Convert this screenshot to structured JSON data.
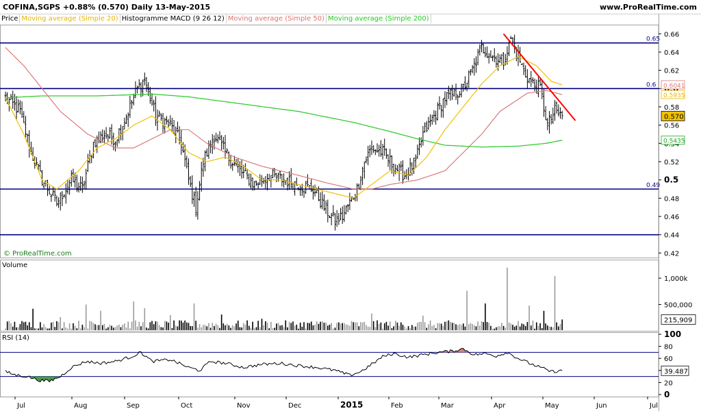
{
  "header": {
    "title": "COFINA,SGPS  +0.88% (0.570)  Daily  13-May-2015",
    "site": "www.ProRealTime.com"
  },
  "legend": [
    {
      "label": "Price",
      "color": "#000000"
    },
    {
      "label": "Moving average (Simple 20)",
      "color": "#e8b500"
    },
    {
      "label": "Histogramme MACD (9 26 12)",
      "color": "#000000"
    },
    {
      "label": "Moving average (Simple 50)",
      "color": "#e07070"
    },
    {
      "label": "Moving average (Simple 200)",
      "color": "#22cc22"
    }
  ],
  "watermark": "© ProRealTime.com",
  "colors": {
    "ma20": "#f0c000",
    "ma50": "#d97a7a",
    "ma200": "#33cc33",
    "trendline": "#ff0000",
    "hline": "#000080",
    "rsi_over": "#d47f7f",
    "rsi_under": "#4a9a4a"
  },
  "chart_data": [
    {
      "type": "line",
      "panel": "price",
      "x_ticks": [
        "Jul",
        "Aug",
        "Sep",
        "Oct",
        "Nov",
        "Dec",
        "2015",
        "Feb",
        "Mar",
        "Apr",
        "May",
        "Jun",
        "Jul"
      ],
      "y_ticks": [
        "0.66",
        "0.64",
        "0.62",
        "0.6",
        "0.58",
        "0.56",
        "0.54",
        "0.52",
        "0.5",
        "0.48",
        "0.46",
        "0.44",
        "0.42"
      ],
      "ylim": [
        0.415,
        0.67
      ],
      "horizontal_levels": [
        {
          "value": 0.65,
          "label": "0.65"
        },
        {
          "value": 0.6,
          "label": "0.6"
        },
        {
          "value": 0.49,
          "label": "0.49"
        },
        {
          "value": 0.44,
          "label": ""
        }
      ],
      "trendline": {
        "from": {
          "date": "Apr 8 2015",
          "value": 0.66
        },
        "to": {
          "date": "May 20 2015",
          "value": 0.565
        }
      },
      "price_anchors": [
        {
          "x": 0,
          "y": 0.59
        },
        {
          "x": 8,
          "y": 0.575
        },
        {
          "x": 14,
          "y": 0.53
        },
        {
          "x": 20,
          "y": 0.5
        },
        {
          "x": 28,
          "y": 0.475
        },
        {
          "x": 36,
          "y": 0.5
        },
        {
          "x": 42,
          "y": 0.49
        },
        {
          "x": 48,
          "y": 0.54
        },
        {
          "x": 54,
          "y": 0.55
        },
        {
          "x": 60,
          "y": 0.545
        },
        {
          "x": 66,
          "y": 0.57
        },
        {
          "x": 72,
          "y": 0.6
        },
        {
          "x": 76,
          "y": 0.61
        },
        {
          "x": 82,
          "y": 0.57
        },
        {
          "x": 90,
          "y": 0.56
        },
        {
          "x": 96,
          "y": 0.54
        },
        {
          "x": 100,
          "y": 0.5
        },
        {
          "x": 104,
          "y": 0.47
        },
        {
          "x": 108,
          "y": 0.52
        },
        {
          "x": 114,
          "y": 0.55
        },
        {
          "x": 120,
          "y": 0.53
        },
        {
          "x": 128,
          "y": 0.51
        },
        {
          "x": 136,
          "y": 0.495
        },
        {
          "x": 144,
          "y": 0.505
        },
        {
          "x": 152,
          "y": 0.5
        },
        {
          "x": 160,
          "y": 0.495
        },
        {
          "x": 168,
          "y": 0.49
        },
        {
          "x": 174,
          "y": 0.47
        },
        {
          "x": 180,
          "y": 0.455
        },
        {
          "x": 184,
          "y": 0.46
        },
        {
          "x": 188,
          "y": 0.475
        },
        {
          "x": 192,
          "y": 0.49
        },
        {
          "x": 196,
          "y": 0.52
        },
        {
          "x": 200,
          "y": 0.535
        },
        {
          "x": 206,
          "y": 0.53
        },
        {
          "x": 212,
          "y": 0.515
        },
        {
          "x": 218,
          "y": 0.505
        },
        {
          "x": 224,
          "y": 0.52
        },
        {
          "x": 228,
          "y": 0.55
        },
        {
          "x": 234,
          "y": 0.57
        },
        {
          "x": 240,
          "y": 0.59
        },
        {
          "x": 246,
          "y": 0.595
        },
        {
          "x": 250,
          "y": 0.6
        },
        {
          "x": 256,
          "y": 0.625
        },
        {
          "x": 260,
          "y": 0.645
        },
        {
          "x": 266,
          "y": 0.635
        },
        {
          "x": 272,
          "y": 0.63
        },
        {
          "x": 276,
          "y": 0.655
        },
        {
          "x": 280,
          "y": 0.635
        },
        {
          "x": 284,
          "y": 0.615
        },
        {
          "x": 288,
          "y": 0.605
        },
        {
          "x": 292,
          "y": 0.6
        },
        {
          "x": 296,
          "y": 0.56
        },
        {
          "x": 300,
          "y": 0.575
        },
        {
          "x": 304,
          "y": 0.57
        }
      ],
      "ma20_anchors": [
        {
          "x": 0,
          "y": 0.59
        },
        {
          "x": 10,
          "y": 0.55
        },
        {
          "x": 20,
          "y": 0.5
        },
        {
          "x": 28,
          "y": 0.49
        },
        {
          "x": 40,
          "y": 0.51
        },
        {
          "x": 50,
          "y": 0.535
        },
        {
          "x": 60,
          "y": 0.545
        },
        {
          "x": 70,
          "y": 0.56
        },
        {
          "x": 80,
          "y": 0.57
        },
        {
          "x": 90,
          "y": 0.555
        },
        {
          "x": 100,
          "y": 0.53
        },
        {
          "x": 110,
          "y": 0.52
        },
        {
          "x": 120,
          "y": 0.525
        },
        {
          "x": 130,
          "y": 0.515
        },
        {
          "x": 140,
          "y": 0.5
        },
        {
          "x": 150,
          "y": 0.5
        },
        {
          "x": 160,
          "y": 0.495
        },
        {
          "x": 170,
          "y": 0.49
        },
        {
          "x": 180,
          "y": 0.485
        },
        {
          "x": 190,
          "y": 0.48
        },
        {
          "x": 200,
          "y": 0.495
        },
        {
          "x": 210,
          "y": 0.51
        },
        {
          "x": 220,
          "y": 0.505
        },
        {
          "x": 230,
          "y": 0.525
        },
        {
          "x": 240,
          "y": 0.555
        },
        {
          "x": 250,
          "y": 0.58
        },
        {
          "x": 260,
          "y": 0.605
        },
        {
          "x": 270,
          "y": 0.625
        },
        {
          "x": 280,
          "y": 0.635
        },
        {
          "x": 290,
          "y": 0.625
        },
        {
          "x": 298,
          "y": 0.608
        },
        {
          "x": 304,
          "y": 0.6041
        }
      ],
      "ma50_anchors": [
        {
          "x": 0,
          "y": 0.645
        },
        {
          "x": 10,
          "y": 0.625
        },
        {
          "x": 20,
          "y": 0.6
        },
        {
          "x": 30,
          "y": 0.575
        },
        {
          "x": 45,
          "y": 0.55
        },
        {
          "x": 60,
          "y": 0.535
        },
        {
          "x": 70,
          "y": 0.535
        },
        {
          "x": 80,
          "y": 0.545
        },
        {
          "x": 90,
          "y": 0.555
        },
        {
          "x": 100,
          "y": 0.555
        },
        {
          "x": 110,
          "y": 0.54
        },
        {
          "x": 125,
          "y": 0.525
        },
        {
          "x": 140,
          "y": 0.515
        },
        {
          "x": 160,
          "y": 0.505
        },
        {
          "x": 175,
          "y": 0.497
        },
        {
          "x": 190,
          "y": 0.49
        },
        {
          "x": 200,
          "y": 0.49
        },
        {
          "x": 210,
          "y": 0.495
        },
        {
          "x": 225,
          "y": 0.5
        },
        {
          "x": 240,
          "y": 0.51
        },
        {
          "x": 250,
          "y": 0.53
        },
        {
          "x": 260,
          "y": 0.55
        },
        {
          "x": 270,
          "y": 0.575
        },
        {
          "x": 285,
          "y": 0.595
        },
        {
          "x": 295,
          "y": 0.598
        },
        {
          "x": 304,
          "y": 0.5935
        }
      ],
      "ma200_anchors": [
        {
          "x": 0,
          "y": 0.59
        },
        {
          "x": 20,
          "y": 0.592
        },
        {
          "x": 50,
          "y": 0.592
        },
        {
          "x": 80,
          "y": 0.594
        },
        {
          "x": 100,
          "y": 0.591
        },
        {
          "x": 130,
          "y": 0.583
        },
        {
          "x": 160,
          "y": 0.575
        },
        {
          "x": 190,
          "y": 0.563
        },
        {
          "x": 210,
          "y": 0.553
        },
        {
          "x": 225,
          "y": 0.545
        },
        {
          "x": 240,
          "y": 0.538
        },
        {
          "x": 260,
          "y": 0.536
        },
        {
          "x": 280,
          "y": 0.537
        },
        {
          "x": 295,
          "y": 0.54
        },
        {
          "x": 304,
          "y": 0.5435
        }
      ],
      "last_labels": [
        {
          "value": 0.6041,
          "label": "0.6041",
          "color": "#d97a7a"
        },
        {
          "value": 0.5935,
          "label": "0.5935",
          "color": "#e8b500"
        },
        {
          "value": 0.57,
          "label": "0.570",
          "color": "#000000",
          "highlight": true
        },
        {
          "value": 0.5435,
          "label": "0.5435",
          "color": "#22aa22"
        }
      ]
    },
    {
      "type": "bar",
      "panel": "volume",
      "title": "Volume",
      "y_ticks": [
        "1,000k",
        "500,000"
      ],
      "ylim": [
        0,
        1300000
      ],
      "last_label": "215,909",
      "spikes": [
        {
          "x": 15,
          "v": 420000
        },
        {
          "x": 30,
          "v": 260000
        },
        {
          "x": 44,
          "v": 500000
        },
        {
          "x": 52,
          "v": 380000
        },
        {
          "x": 70,
          "v": 560000
        },
        {
          "x": 76,
          "v": 430000
        },
        {
          "x": 90,
          "v": 300000
        },
        {
          "x": 103,
          "v": 520000
        },
        {
          "x": 118,
          "v": 310000
        },
        {
          "x": 140,
          "v": 230000
        },
        {
          "x": 170,
          "v": 180000
        },
        {
          "x": 200,
          "v": 330000
        },
        {
          "x": 228,
          "v": 290000
        },
        {
          "x": 252,
          "v": 760000
        },
        {
          "x": 262,
          "v": 520000
        },
        {
          "x": 274,
          "v": 1200000
        },
        {
          "x": 286,
          "v": 480000
        },
        {
          "x": 294,
          "v": 380000
        },
        {
          "x": 300,
          "v": 1040000
        },
        {
          "x": 304,
          "v": 215909
        }
      ]
    },
    {
      "type": "line",
      "panel": "rsi",
      "title": "RSI (14)",
      "y_ticks": [
        "100",
        "80",
        "60",
        "40",
        "20",
        "0"
      ],
      "ylim": [
        0,
        100
      ],
      "levels": [
        70,
        30
      ],
      "last_label": "39.487",
      "rsi_anchors": [
        {
          "x": 0,
          "y": 38
        },
        {
          "x": 6,
          "y": 32
        },
        {
          "x": 12,
          "y": 30
        },
        {
          "x": 18,
          "y": 24
        },
        {
          "x": 24,
          "y": 22
        },
        {
          "x": 30,
          "y": 30
        },
        {
          "x": 36,
          "y": 45
        },
        {
          "x": 44,
          "y": 55
        },
        {
          "x": 52,
          "y": 52
        },
        {
          "x": 60,
          "y": 55
        },
        {
          "x": 68,
          "y": 62
        },
        {
          "x": 74,
          "y": 70
        },
        {
          "x": 80,
          "y": 55
        },
        {
          "x": 90,
          "y": 58
        },
        {
          "x": 100,
          "y": 45
        },
        {
          "x": 106,
          "y": 40
        },
        {
          "x": 112,
          "y": 55
        },
        {
          "x": 120,
          "y": 52
        },
        {
          "x": 130,
          "y": 45
        },
        {
          "x": 140,
          "y": 50
        },
        {
          "x": 150,
          "y": 52
        },
        {
          "x": 160,
          "y": 48
        },
        {
          "x": 170,
          "y": 45
        },
        {
          "x": 180,
          "y": 40
        },
        {
          "x": 188,
          "y": 32
        },
        {
          "x": 194,
          "y": 38
        },
        {
          "x": 200,
          "y": 50
        },
        {
          "x": 206,
          "y": 63
        },
        {
          "x": 212,
          "y": 68
        },
        {
          "x": 220,
          "y": 62
        },
        {
          "x": 228,
          "y": 66
        },
        {
          "x": 236,
          "y": 70
        },
        {
          "x": 244,
          "y": 72
        },
        {
          "x": 250,
          "y": 76
        },
        {
          "x": 256,
          "y": 66
        },
        {
          "x": 262,
          "y": 68
        },
        {
          "x": 268,
          "y": 64
        },
        {
          "x": 274,
          "y": 70
        },
        {
          "x": 280,
          "y": 60
        },
        {
          "x": 286,
          "y": 52
        },
        {
          "x": 292,
          "y": 45
        },
        {
          "x": 298,
          "y": 38
        },
        {
          "x": 304,
          "y": 39.487
        }
      ]
    }
  ]
}
